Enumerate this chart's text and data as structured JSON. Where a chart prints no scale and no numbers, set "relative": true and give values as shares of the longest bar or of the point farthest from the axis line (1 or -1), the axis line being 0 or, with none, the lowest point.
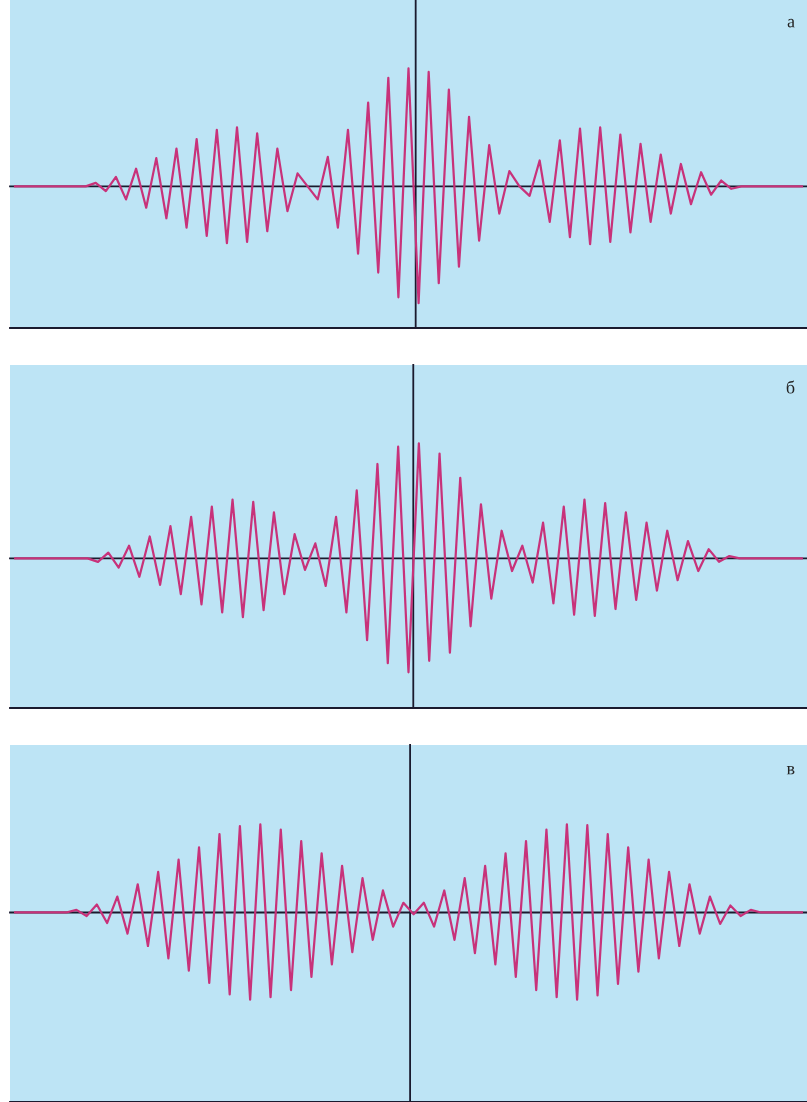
{
  "chart_data": [
    {
      "type": "line",
      "relative": true,
      "tick_labels": false,
      "annotations": [
        "а"
      ],
      "categories": [
        null,
        null,
        null,
        null,
        null,
        null,
        null,
        null,
        null,
        null,
        null,
        null,
        null,
        null,
        null,
        null,
        null,
        null,
        null,
        null,
        null,
        null,
        null,
        null,
        null,
        null,
        null,
        null,
        null,
        null,
        null,
        null,
        null,
        null,
        null,
        null,
        null,
        null,
        null,
        null,
        null,
        null,
        null,
        null,
        null,
        null,
        null,
        null,
        null,
        null,
        null,
        null,
        null,
        null,
        null,
        null,
        null,
        null,
        null,
        null,
        null,
        null,
        null,
        null,
        null,
        null,
        null,
        null,
        null,
        null,
        null,
        null,
        null,
        null,
        null,
        null,
        null,
        null,
        null
      ],
      "series": [
        {
          "color": "#c8327a",
          "values": [
            0,
            0,
            0,
            0,
            0,
            0,
            0,
            0,
            0.03,
            -0.04,
            0.08,
            -0.11,
            0.15,
            -0.18,
            0.24,
            -0.27,
            0.32,
            -0.35,
            0.4,
            -0.42,
            0.48,
            -0.48,
            0.5,
            -0.47,
            0.45,
            -0.38,
            0.32,
            -0.21,
            0.11,
            0,
            -0.11,
            0.25,
            -0.35,
            0.48,
            -0.57,
            0.71,
            -0.73,
            0.92,
            -0.94,
            1,
            -0.99,
            0.97,
            -0.82,
            0.82,
            -0.68,
            0.59,
            -0.46,
            0.35,
            -0.23,
            0.13,
            0,
            -0.08,
            0.22,
            -0.3,
            0.39,
            -0.43,
            0.49,
            -0.49,
            0.5,
            -0.47,
            0.44,
            -0.39,
            0.36,
            -0.3,
            0.27,
            -0.23,
            0.19,
            -0.15,
            0.12,
            -0.07,
            0.05,
            -0.02,
            0,
            0,
            0,
            0,
            0,
            0,
            0
          ]
        }
      ]
    },
    {
      "type": "line",
      "relative": true,
      "tick_labels": false,
      "annotations": [
        "б"
      ],
      "categories": [
        null,
        null,
        null,
        null,
        null,
        null,
        null,
        null,
        null,
        null,
        null,
        null,
        null,
        null,
        null,
        null,
        null,
        null,
        null,
        null,
        null,
        null,
        null,
        null,
        null,
        null,
        null,
        null,
        null,
        null,
        null,
        null,
        null,
        null,
        null,
        null,
        null,
        null,
        null,
        null,
        null,
        null,
        null,
        null,
        null,
        null,
        null,
        null,
        null,
        null,
        null,
        null,
        null,
        null,
        null,
        null,
        null,
        null,
        null,
        null,
        null,
        null,
        null,
        null,
        null,
        null,
        null,
        null,
        null,
        null,
        null,
        null,
        null,
        null,
        null,
        null,
        null
      ],
      "series": [
        {
          "color": "#c8327a",
          "values": [
            0,
            0,
            0,
            0,
            0,
            0,
            0,
            0,
            -0.03,
            0.05,
            -0.08,
            0.11,
            -0.16,
            0.19,
            -0.23,
            0.28,
            -0.31,
            0.36,
            -0.4,
            0.45,
            -0.47,
            0.51,
            -0.51,
            0.49,
            -0.45,
            0.4,
            -0.31,
            0.21,
            -0.1,
            0.13,
            -0.24,
            0.36,
            -0.47,
            0.59,
            -0.71,
            0.82,
            -0.91,
            0.97,
            -0.99,
            1,
            -0.89,
            0.91,
            -0.82,
            0.7,
            -0.59,
            0.47,
            -0.35,
            0.24,
            -0.11,
            0.11,
            -0.21,
            0.31,
            -0.39,
            0.45,
            -0.49,
            0.51,
            -0.5,
            0.48,
            -0.44,
            0.4,
            -0.36,
            0.31,
            -0.28,
            0.24,
            -0.19,
            0.15,
            -0.11,
            0.08,
            -0.03,
            0.02,
            0,
            0,
            0,
            0,
            0,
            0,
            0
          ]
        }
      ]
    },
    {
      "type": "line",
      "relative": true,
      "tick_labels": false,
      "annotations": [
        "в"
      ],
      "categories": [
        null,
        null,
        null,
        null,
        null,
        null,
        null,
        null,
        null,
        null,
        null,
        null,
        null,
        null,
        null,
        null,
        null,
        null,
        null,
        null,
        null,
        null,
        null,
        null,
        null,
        null,
        null,
        null,
        null,
        null,
        null,
        null,
        null,
        null,
        null,
        null,
        null,
        null,
        null,
        null,
        null,
        null,
        null,
        null,
        null,
        null,
        null,
        null,
        null,
        null,
        null,
        null,
        null,
        null,
        null,
        null,
        null,
        null,
        null,
        null,
        null,
        null,
        null,
        null,
        null,
        null,
        null,
        null,
        null,
        null,
        null,
        null,
        null,
        null,
        null,
        null,
        null,
        null
      ],
      "series": [
        {
          "color": "#c8327a",
          "values": [
            0,
            0,
            0,
            0,
            0,
            0,
            0.03,
            -0.04,
            0.09,
            -0.12,
            0.18,
            -0.24,
            0.32,
            -0.38,
            0.46,
            -0.52,
            0.6,
            -0.66,
            0.74,
            -0.8,
            0.89,
            -0.93,
            0.98,
            -0.99,
            1,
            -0.96,
            0.94,
            -0.88,
            0.81,
            -0.73,
            0.67,
            -0.59,
            0.53,
            -0.45,
            0.39,
            -0.31,
            0.25,
            -0.16,
            0.11,
            -0.02,
            0.11,
            -0.16,
            0.25,
            -0.31,
            0.39,
            -0.46,
            0.53,
            -0.59,
            0.67,
            -0.73,
            0.81,
            -0.88,
            0.94,
            -0.96,
            1,
            -0.99,
            0.99,
            -0.94,
            0.89,
            -0.81,
            0.74,
            -0.67,
            0.6,
            -0.52,
            0.46,
            -0.38,
            0.32,
            -0.24,
            0.18,
            -0.13,
            0.08,
            -0.04,
            0.03,
            0,
            0,
            0,
            0,
            0
          ]
        }
      ]
    }
  ]
}
